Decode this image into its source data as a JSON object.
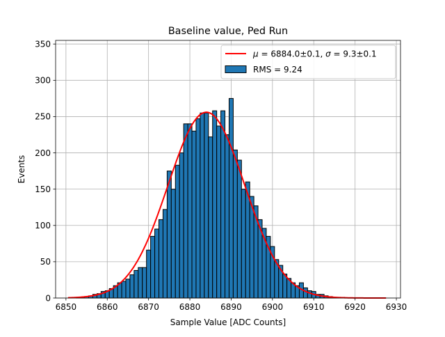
{
  "chart_data": {
    "type": "bar",
    "title": "Baseline value, Ped Run",
    "xlabel": "Sample Value [ADC Counts]",
    "ylabel": "Events",
    "xlim": [
      6847.5,
      6931
    ],
    "ylim": [
      0,
      355
    ],
    "grid": true,
    "legend_position": "upper-right",
    "xticks": [
      6850,
      6860,
      6870,
      6880,
      6890,
      6900,
      6910,
      6920,
      6930
    ],
    "yticks": [
      0,
      50,
      100,
      150,
      200,
      250,
      300,
      350
    ],
    "histogram": {
      "name": "RMS = 9.24",
      "color": "#1f77b4",
      "edgecolor": "#000000",
      "bin_edges": [
        6850.5,
        6851.5,
        6852.5,
        6853.5,
        6854.5,
        6855.5,
        6856.5,
        6857.5,
        6858.5,
        6859.5,
        6860.5,
        6861.5,
        6862.5,
        6863.5,
        6864.5,
        6865.5,
        6866.5,
        6867.5,
        6868.5,
        6869.5,
        6870.5,
        6871.5,
        6872.5,
        6873.5,
        6874.5,
        6875.5,
        6876.5,
        6877.5,
        6878.5,
        6879.5,
        6880.5,
        6881.5,
        6882.5,
        6883.5,
        6884.5,
        6885.5,
        6886.5,
        6887.5,
        6888.5,
        6889.5,
        6890.5,
        6891.5,
        6892.5,
        6893.5,
        6894.5,
        6895.5,
        6896.5,
        6897.5,
        6898.5,
        6899.5,
        6900.5,
        6901.5,
        6902.5,
        6903.5,
        6904.5,
        6905.5,
        6906.5,
        6907.5,
        6908.5,
        6909.5,
        6910.5,
        6911.5,
        6912.5,
        6913.5,
        6914.5,
        6915.5,
        6916.5,
        6917.5,
        6918.5,
        6919.5,
        6920.5,
        6921.5,
        6922.5,
        6923.5,
        6924.5,
        6925.5,
        6926.5,
        6927.5
      ],
      "counts": [
        0,
        0,
        1,
        1,
        2,
        3,
        5,
        6,
        9,
        10,
        13,
        17,
        21,
        23,
        26,
        32,
        38,
        42,
        42,
        66,
        85,
        95,
        108,
        122,
        175,
        150,
        183,
        200,
        240,
        240,
        230,
        247,
        255,
        255,
        222,
        258,
        237,
        258,
        225,
        275,
        204,
        190,
        150,
        160,
        140,
        127,
        108,
        96,
        85,
        71,
        53,
        45,
        33,
        27,
        21,
        17,
        21,
        14,
        10,
        9,
        5,
        5,
        3,
        2,
        1,
        1,
        1,
        0,
        0,
        0,
        0,
        0,
        0,
        0,
        0,
        0,
        0
      ]
    },
    "series": [
      {
        "name": "$\\mu=6884.0\\pm0.1$, $\\sigma=9.3\\pm0.1$",
        "type": "line",
        "color": "#ff0000",
        "mu": 6884.0,
        "sigma": 9.3,
        "amplitude": 256,
        "x_range": [
          6850.5,
          6927.5
        ]
      }
    ],
    "legend": [
      {
        "label_parts": [
          "μ",
          " = 6884.0±0.1, ",
          "σ",
          " = 9.3±0.1"
        ],
        "swatch": "line"
      },
      {
        "label": "RMS = 9.24",
        "swatch": "patch"
      }
    ]
  }
}
